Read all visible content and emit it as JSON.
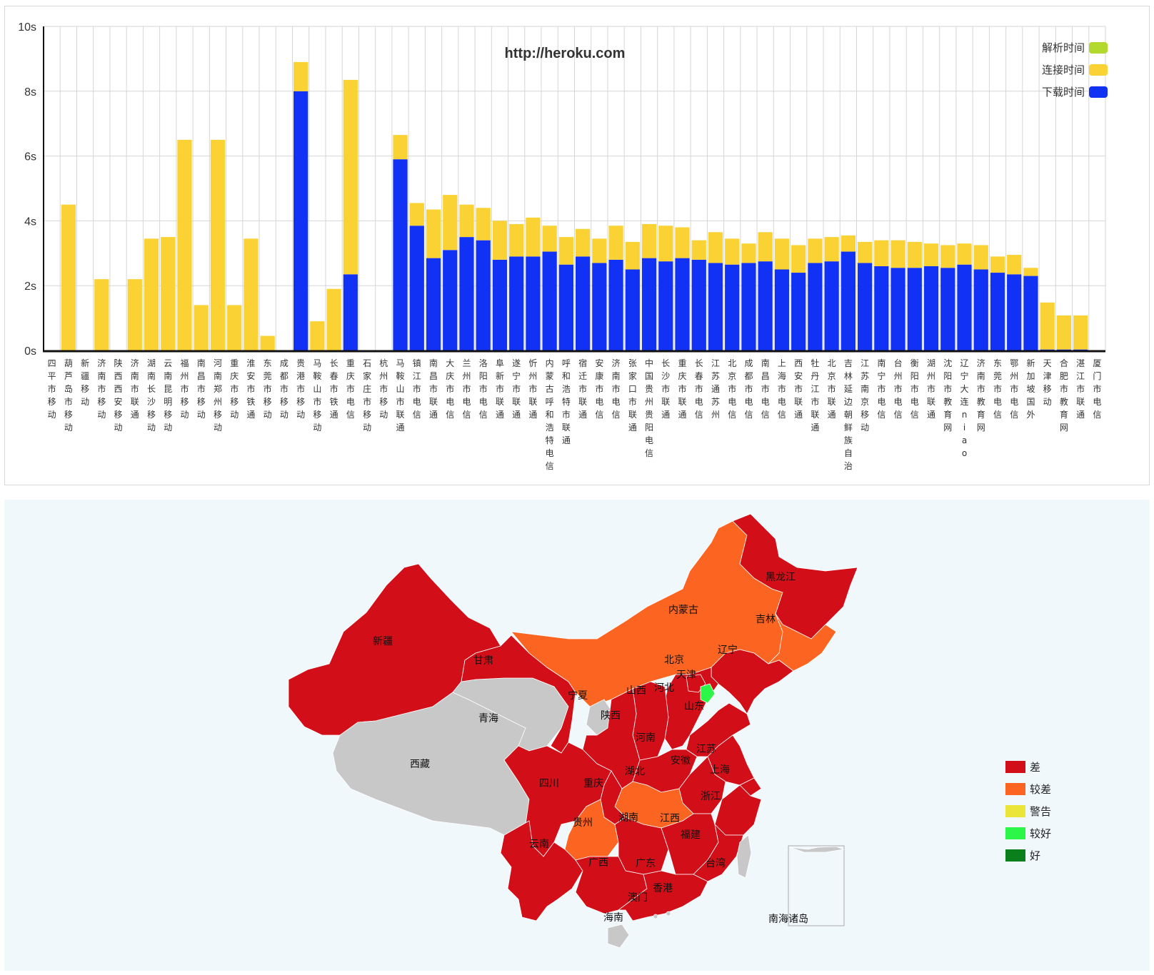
{
  "chart_data": {
    "type": "bar",
    "stacked": true,
    "title": "http://heroku.com",
    "ylabel": "",
    "xlabel": "",
    "ylim": [
      0,
      10
    ],
    "yticks": [
      "0s",
      "2s",
      "4s",
      "6s",
      "8s",
      "10s"
    ],
    "grid": true,
    "legend_position": "top-right",
    "categories": [
      "四平市移动",
      "葫芦岛市移动",
      "新疆移动",
      "济南市移动",
      "陕西西安移动",
      "济南市联通",
      "湖南长沙移动",
      "云南昆明移动",
      "福州市移动",
      "南昌市移动",
      "河南郑州移动",
      "重庆市移动",
      "淮安市铁通",
      "东莞市移动",
      "成都市移动",
      "贵港市移动",
      "马鞍山市移动",
      "长春市铁通",
      "重庆市电信",
      "石家庄市移动",
      "杭州市移动",
      "马鞍山市联通",
      "镇江市电信",
      "南昌市联通",
      "大庆市电信",
      "兰州市电信",
      "洛阳市电信",
      "阜新市联通",
      "遂宁市联通",
      "忻州市联通",
      "内蒙古呼和浩特电信",
      "呼和浩特市联通",
      "宿迁市联通",
      "安康市电信",
      "济南市电信",
      "张家口市联通",
      "中国贵州贵阳电信",
      "长沙市联通",
      "重庆市联通",
      "长春市电信",
      "江苏通苏州",
      "北京市电信",
      "成都市电信",
      "南昌市电信",
      "上海市电信",
      "西安市联通",
      "牡丹江市联通",
      "北京市联通",
      "吉林延边朝鲜族自治",
      "江苏南京移动",
      "南宁市电信",
      "台州市电信",
      "衡阳市电信",
      "湖州市联通",
      "沈阳市教育网",
      "辽宁大连niao",
      "济南市教育网",
      "东莞市电信",
      "鄂州市电信",
      "新加坡国外",
      "天津移动",
      "合肥市教育网",
      "湛江市联通",
      "厦门市电信"
    ],
    "series": [
      {
        "name": "解析时间",
        "color": "#b3d92e",
        "values": [
          0,
          0,
          0,
          0,
          0,
          0,
          0,
          0,
          0,
          0,
          0,
          0,
          0,
          0,
          0,
          0,
          0,
          0,
          0,
          0,
          0,
          0,
          0,
          0,
          0,
          0,
          0,
          0,
          0,
          0,
          0,
          0,
          0,
          0,
          0,
          0,
          0,
          0,
          0,
          0,
          0,
          0,
          0,
          0,
          0,
          0,
          0,
          0,
          0,
          0,
          0,
          0,
          0,
          0,
          0,
          0,
          0,
          0,
          0,
          0,
          0,
          0,
          0,
          0
        ]
      },
      {
        "name": "连接时间",
        "color": "#fbd233",
        "values": [
          0,
          4.5,
          0,
          2.2,
          0,
          2.2,
          3.45,
          3.5,
          6.5,
          1.4,
          6.5,
          1.4,
          3.45,
          0.45,
          0,
          0.9,
          0.9,
          1.9,
          6.0,
          0,
          0,
          0.75,
          0.7,
          1.5,
          1.7,
          1.0,
          1.0,
          1.2,
          1.0,
          1.2,
          0.8,
          0.85,
          0.85,
          0.75,
          1.05,
          0.85,
          1.05,
          1.1,
          0.95,
          0.6,
          0.95,
          0.8,
          0.6,
          0.9,
          0.95,
          0.85,
          0.75,
          0.75,
          0.5,
          0.65,
          0.8,
          0.85,
          0.8,
          0.7,
          0.7,
          0.65,
          0.75,
          0.5,
          0.6,
          0.25,
          1.45,
          1.05,
          1.05,
          0
        ]
      },
      {
        "name": "下载时间",
        "color": "#1131f5",
        "values": [
          0,
          0,
          0,
          0,
          0,
          0,
          0,
          0,
          0,
          0,
          0,
          0,
          0,
          0,
          0,
          8.0,
          0,
          0,
          2.35,
          0,
          0,
          5.9,
          3.85,
          2.85,
          3.1,
          3.5,
          3.4,
          2.8,
          2.9,
          2.9,
          3.05,
          2.65,
          2.9,
          2.7,
          2.8,
          2.5,
          2.85,
          2.75,
          2.85,
          2.8,
          2.7,
          2.65,
          2.7,
          2.75,
          2.5,
          2.4,
          2.7,
          2.75,
          3.05,
          2.7,
          2.6,
          2.55,
          2.55,
          2.6,
          2.55,
          2.65,
          2.5,
          2.4,
          2.35,
          2.3,
          0.03,
          0.03,
          0.03,
          0
        ]
      }
    ]
  },
  "map": {
    "regions": [
      {
        "name": "新疆",
        "level": "差"
      },
      {
        "name": "西藏",
        "level": "none"
      },
      {
        "name": "青海",
        "level": "none"
      },
      {
        "name": "甘肃",
        "level": "差"
      },
      {
        "name": "宁夏",
        "level": "none"
      },
      {
        "name": "内蒙古",
        "level": "较差"
      },
      {
        "name": "黑龙江",
        "level": "差"
      },
      {
        "name": "吉林",
        "level": "较差"
      },
      {
        "name": "辽宁",
        "level": "差"
      },
      {
        "name": "北京",
        "level": "差"
      },
      {
        "name": "天津",
        "level": "较好"
      },
      {
        "name": "河北",
        "level": "差"
      },
      {
        "name": "山西",
        "level": "差"
      },
      {
        "name": "山东",
        "level": "差"
      },
      {
        "name": "陕西",
        "level": "差"
      },
      {
        "name": "河南",
        "level": "差"
      },
      {
        "name": "江苏",
        "level": "差"
      },
      {
        "name": "安徽",
        "level": "差"
      },
      {
        "name": "上海",
        "level": "差"
      },
      {
        "name": "湖北",
        "level": "较差"
      },
      {
        "name": "四川",
        "level": "差"
      },
      {
        "name": "重庆",
        "level": "差"
      },
      {
        "name": "浙江",
        "level": "差"
      },
      {
        "name": "贵州",
        "level": "较差"
      },
      {
        "name": "湖南",
        "level": "差"
      },
      {
        "name": "江西",
        "level": "差"
      },
      {
        "name": "福建",
        "level": "差"
      },
      {
        "name": "云南",
        "level": "差"
      },
      {
        "name": "广西",
        "level": "差"
      },
      {
        "name": "广东",
        "level": "差"
      },
      {
        "name": "台湾",
        "level": "none"
      },
      {
        "name": "香港",
        "level": "none"
      },
      {
        "name": "澳门",
        "level": "none"
      },
      {
        "name": "海南",
        "level": "none"
      },
      {
        "name": "南海诸岛",
        "level": "none"
      }
    ],
    "legend": [
      {
        "label": "差",
        "color": "#d20e18"
      },
      {
        "label": "较差",
        "color": "#fb6421"
      },
      {
        "label": "警告",
        "color": "#ebe53a"
      },
      {
        "label": "较好",
        "color": "#2cf648"
      },
      {
        "label": "好",
        "color": "#0c7f1d"
      }
    ],
    "none_color": "#c8c8c8"
  }
}
